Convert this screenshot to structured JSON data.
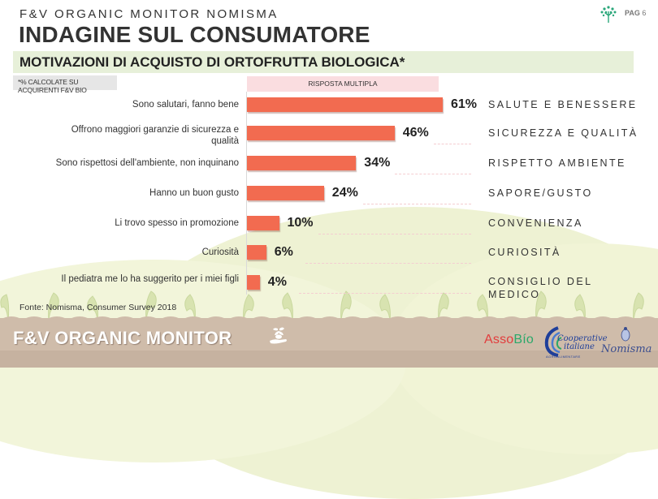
{
  "header": {
    "subtitle": "F&V ORGANIC MONITOR NOMISMA",
    "title": "INDAGINE SUL CONSUMATORE",
    "page_label": "PAG",
    "page_number": "6"
  },
  "section": {
    "title": "MOTIVAZIONI DI ACQUISTO DI ORTOFRUTTA BIOLOGICA*",
    "note": "*% CALCOLATE SU ACQUIRENTI F&V BIO",
    "multi_response_label": "RISPOSTA MULTIPLA"
  },
  "rows": [
    {
      "label": "Sono salutari, fanno bene",
      "value": 61,
      "value_label": "61%",
      "category": "SALUTE E BENESSERE"
    },
    {
      "label": "Offrono maggiori garanzie di sicurezza e qualità",
      "value": 46,
      "value_label": "46%",
      "category": "SICUREZZA E QUALITÀ"
    },
    {
      "label": "Sono rispettosi dell'ambiente, non inquinano",
      "value": 34,
      "value_label": "34%",
      "category": "RISPETTO AMBIENTE"
    },
    {
      "label": "Hanno un buon gusto",
      "value": 24,
      "value_label": "24%",
      "category": "SAPORE/GUSTO"
    },
    {
      "label": "Li trovo spesso in promozione",
      "value": 10,
      "value_label": "10%",
      "category": "CONVENIENZA"
    },
    {
      "label": "Curiosità",
      "value": 6,
      "value_label": "6%",
      "category": "CURIOSITÀ"
    },
    {
      "label": "Il pediatra me lo ha suggerito per i miei figli",
      "value": 4,
      "value_label": "4%",
      "category": "CONSIGLIO DEL MEDICO"
    }
  ],
  "source": "Fonte: Nomisma, Consumer Survey 2018",
  "footer": {
    "brand": "F&V ORGANIC MONITOR",
    "logos": {
      "assobio_part1": "Asso",
      "assobio_part2": "Bío",
      "coop_line1": "Cooperative",
      "coop_line2": "italiane",
      "coop_sub": "AGROALIMENTARE",
      "nomisma": "Nomisma"
    }
  },
  "colors": {
    "bar": "#f26b50",
    "section_bg": "#e7f0d9",
    "multi_bg": "#fadde0",
    "note_bg": "#e6e6e6",
    "ground": "#cfbcaa"
  },
  "chart_data": {
    "type": "bar",
    "orientation": "horizontal",
    "title": "MOTIVAZIONI DI ACQUISTO DI ORTOFRUTTA BIOLOGICA*",
    "subtitle": "RISPOSTA MULTIPLA",
    "note": "*% CALCOLATE SU ACQUIRENTI F&V BIO",
    "categories": [
      "Sono salutari, fanno bene",
      "Offrono maggiori garanzie di sicurezza e qualità",
      "Sono rispettosi dell'ambiente, non inquinano",
      "Hanno un buon gusto",
      "Li trovo spesso in promozione",
      "Curiosità",
      "Il pediatra me lo ha suggerito per i miei figli"
    ],
    "values": [
      61,
      46,
      34,
      24,
      10,
      6,
      4
    ],
    "unit": "%",
    "group_labels": [
      "SALUTE E BENESSERE",
      "SICUREZZA E QUALITÀ",
      "RISPETTO AMBIENTE",
      "SAPORE/GUSTO",
      "CONVENIENZA",
      "CURIOSITÀ",
      "CONSIGLIO DEL MEDICO"
    ],
    "xlabel": "",
    "ylabel": "",
    "xlim": [
      0,
      100
    ],
    "grid": false,
    "legend": "none",
    "source": "Fonte: Nomisma, Consumer Survey 2018"
  }
}
